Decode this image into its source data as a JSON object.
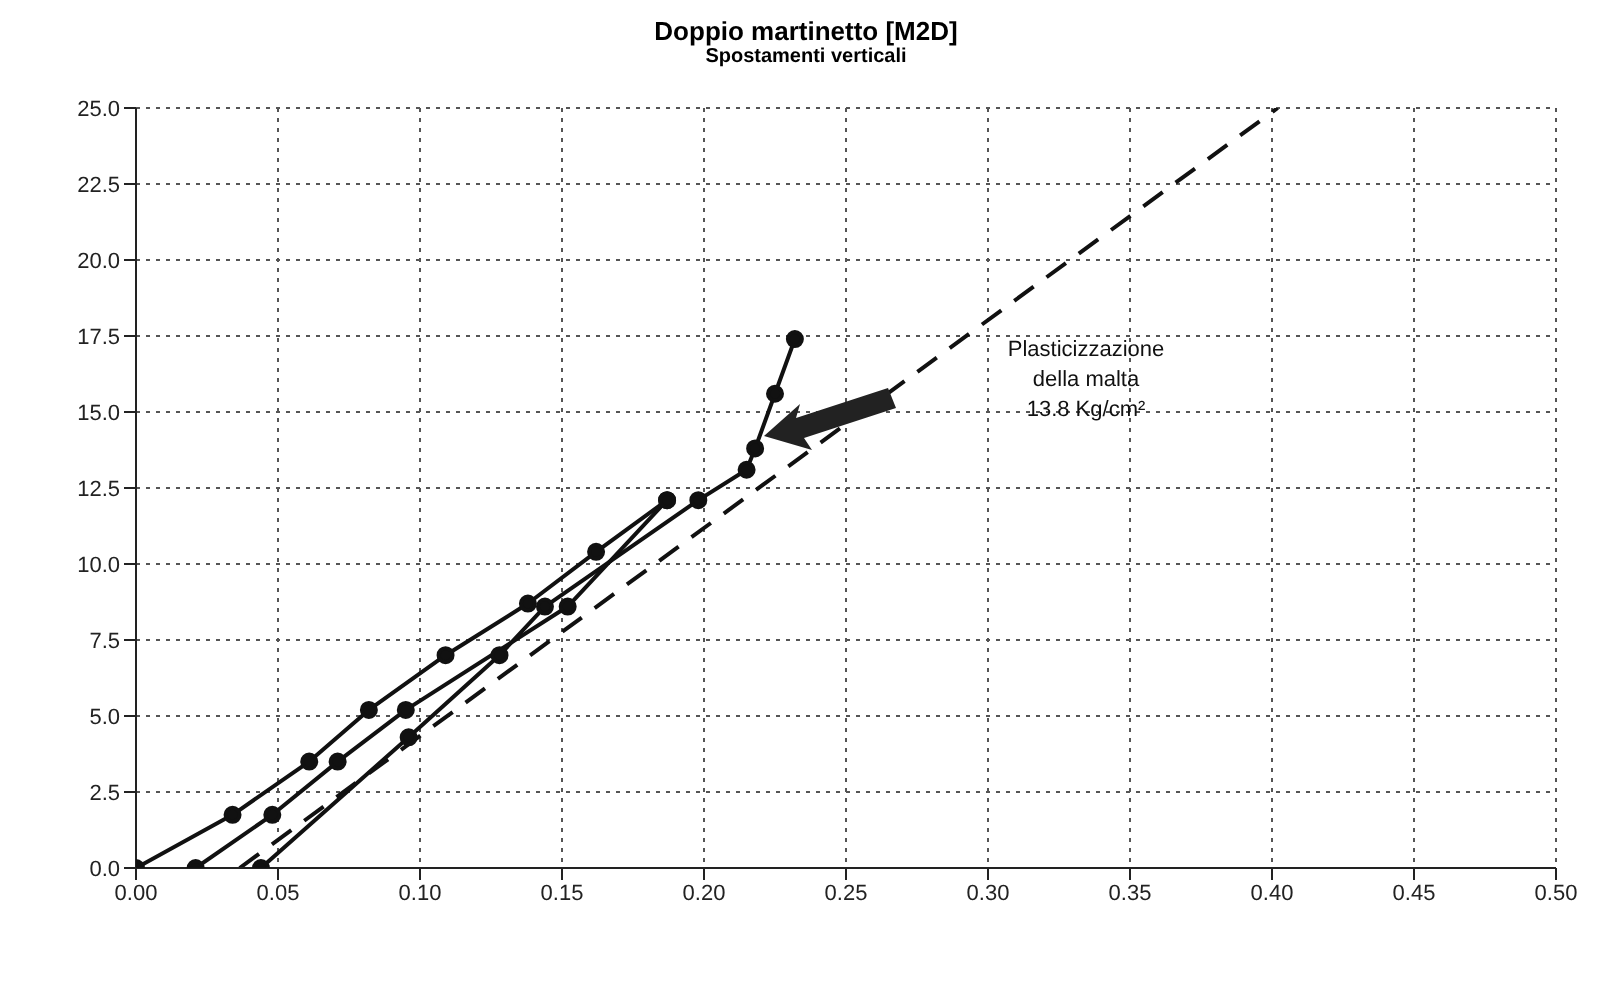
{
  "chart_data": {
    "type": "line",
    "title": "Doppio martinetto  [M2D]",
    "subtitle": "Spostamenti verticali",
    "xlim": [
      0,
      0.5
    ],
    "ylim": [
      0,
      25
    ],
    "xticks": [
      {
        "value": 0,
        "label": "0.00"
      },
      {
        "value": 0.05,
        "label": "0.05"
      },
      {
        "value": 0.1,
        "label": "0.10"
      },
      {
        "value": 0.15,
        "label": "0.15"
      },
      {
        "value": 0.2,
        "label": "0.20"
      },
      {
        "value": 0.25,
        "label": "0.25"
      },
      {
        "value": 0.3,
        "label": "0.30"
      },
      {
        "value": 0.35,
        "label": "0.35"
      },
      {
        "value": 0.4,
        "label": "0.40"
      },
      {
        "value": 0.45,
        "label": "0.45"
      },
      {
        "value": 0.5,
        "label": "0.50"
      }
    ],
    "yticks": [
      {
        "value": 0,
        "label": "0.0"
      },
      {
        "value": 2.5,
        "label": "2.5"
      },
      {
        "value": 5,
        "label": "5.0"
      },
      {
        "value": 7.5,
        "label": "7.5"
      },
      {
        "value": 10,
        "label": "10.0"
      },
      {
        "value": 12.5,
        "label": "12.5"
      },
      {
        "value": 15,
        "label": "15.0"
      },
      {
        "value": 17.5,
        "label": "17.5"
      },
      {
        "value": 20,
        "label": "20.0"
      },
      {
        "value": 22.5,
        "label": "22.5"
      },
      {
        "value": 25,
        "label": "25.0"
      }
    ],
    "grid": true,
    "marker": "circle",
    "line_style": "solid",
    "series": [
      {
        "color": "#111111",
        "x": [
          0,
          0.034,
          0.061,
          0.082,
          0.109,
          0.138,
          0.162,
          0.187
        ],
        "values": [
          0,
          1.75,
          3.5,
          5.2,
          7.0,
          8.7,
          10.4,
          12.1
        ]
      },
      {
        "color": "#111111",
        "x": [
          0.021,
          0.048,
          0.071,
          0.095,
          0.152,
          0.187
        ],
        "values": [
          0,
          1.75,
          3.5,
          5.2,
          8.6,
          12.1
        ]
      },
      {
        "color": "#111111",
        "x": [
          0.044,
          0.096,
          0.128,
          0.144,
          0.198,
          0.215,
          0.218,
          0.225,
          0.232
        ],
        "values": [
          0,
          4.3,
          7.0,
          8.6,
          12.1,
          13.1,
          13.8,
          15.6,
          17.4
        ]
      },
      {
        "type": "line",
        "color": "#111111",
        "marker": "none",
        "line_style": "dashed",
        "x": [
          0.0365,
          0.402
        ],
        "values": [
          0,
          25
        ]
      }
    ],
    "annotations": [
      "Plasticizzazione\ndella malta\n13.8 Kg/cm²"
    ]
  }
}
